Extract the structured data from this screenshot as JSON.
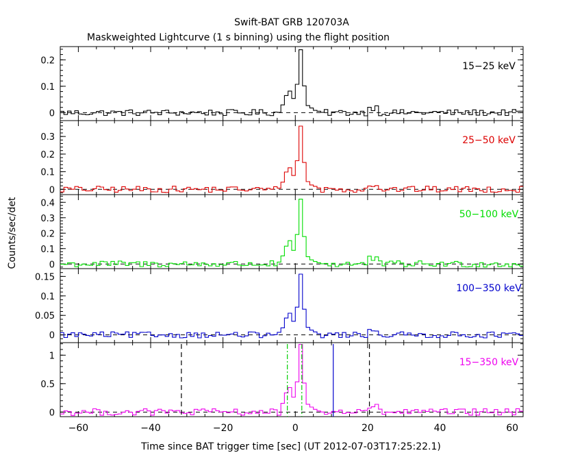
{
  "title": "Swift-BAT GRB 120703A",
  "subtitle": "Maskweighted Lightcurve (1 s binning) using the flight position",
  "xlabel": "Time since BAT trigger time [sec] (UT 2012-07-03T17:25:22.1)",
  "ylabel": "Counts/sec/det",
  "colors": {
    "axis": "#000000",
    "baseline": "#000000"
  },
  "chart_data": {
    "type": "line",
    "xlim": [
      -65,
      63
    ],
    "xticks": [
      -60,
      -40,
      -20,
      0,
      20,
      40,
      60
    ],
    "xtick_labels": [
      "−60",
      "−40",
      "−20",
      "0",
      "20",
      "40",
      "60"
    ],
    "shape": {
      "x": [
        -4,
        -3,
        -2,
        -1,
        0,
        1,
        2,
        3,
        4,
        5,
        6
      ],
      "values": [
        0.12,
        0.28,
        0.35,
        0.22,
        0.45,
        1.0,
        0.42,
        0.12,
        0.07,
        0.04,
        0.02
      ],
      "noise_amplitude": 0.05,
      "bump": {
        "x": 21,
        "value": 0.08
      }
    },
    "panels": [
      {
        "name": "15−25 keV",
        "color": "#000000",
        "ylim": [
          -0.03,
          0.25
        ],
        "yticks": [
          0,
          0.1,
          0.2
        ],
        "ytick_labels": [
          "0",
          "0.1",
          "0.2"
        ],
        "peak": 0.24
      },
      {
        "name": "25−50 keV",
        "color": "#dd0000",
        "ylim": [
          -0.03,
          0.39
        ],
        "yticks": [
          0,
          0.1,
          0.2,
          0.3
        ],
        "ytick_labels": [
          "0",
          "0.1",
          "0.2",
          "0.3"
        ],
        "peak": 0.36
      },
      {
        "name": "50−100 keV",
        "color": "#00dd00",
        "ylim": [
          -0.03,
          0.45
        ],
        "yticks": [
          0,
          0.1,
          0.2,
          0.3,
          0.4
        ],
        "ytick_labels": [
          "0",
          "0.1",
          "0.2",
          "0.3",
          "0.4"
        ],
        "peak": 0.42
      },
      {
        "name": "100−350 keV",
        "color": "#0000cc",
        "ylim": [
          -0.02,
          0.17
        ],
        "yticks": [
          0,
          0.05,
          0.1,
          0.15
        ],
        "ytick_labels": [
          "0",
          "0.05",
          "0.1",
          "0.15"
        ],
        "peak": 0.155
      },
      {
        "name": "15−350 keV",
        "color": "#ee00ee",
        "ylim": [
          -0.08,
          1.22
        ],
        "yticks": [
          0,
          0.5,
          1
        ],
        "ytick_labels": [
          "0",
          "0.5",
          "1"
        ],
        "peak": 1.2
      }
    ],
    "markers": [
      {
        "x": -31.5,
        "style": "black-dashed"
      },
      {
        "x": 20.5,
        "style": "black-dashed"
      },
      {
        "x": -2.2,
        "style": "green-dashdot"
      },
      {
        "x": 1.8,
        "style": "green-dashdot"
      },
      {
        "x": 10.5,
        "style": "blue-solid"
      }
    ],
    "marker_styles": {
      "black-dashed": "#000000",
      "green-dashdot": "#00cc00",
      "blue-solid": "#0000cc"
    }
  }
}
